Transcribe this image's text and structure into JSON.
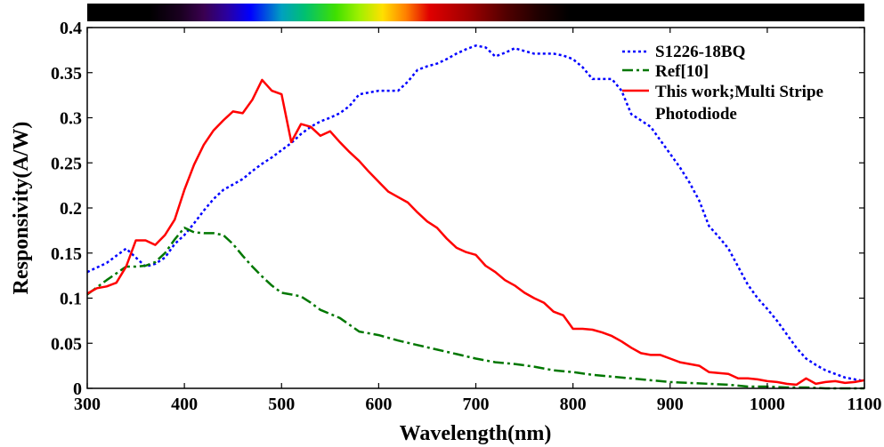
{
  "chart_data": {
    "type": "line",
    "xlabel": "Wavelength(nm)",
    "ylabel": "Responsivity(A/W)",
    "xlim": [
      300,
      1100
    ],
    "ylim": [
      0,
      0.4
    ],
    "x_ticks": [
      300,
      400,
      500,
      600,
      700,
      800,
      900,
      1000,
      1100
    ],
    "x_tick_labels": [
      "300",
      "400",
      "500",
      "600",
      "700",
      "800",
      "900",
      "1000",
      "1100"
    ],
    "y_ticks": [
      0,
      0.05,
      0.1,
      0.15,
      0.2,
      0.25,
      0.3,
      0.35,
      0.4
    ],
    "y_tick_labels": [
      "0",
      "0.05",
      "0.1",
      "0.15",
      "0.2",
      "0.25",
      "0.3",
      "0.35",
      "0.4"
    ],
    "grid": false,
    "legend_position": "top-right",
    "spectrum_bar": true,
    "series": [
      {
        "name": "S1226-18BQ",
        "color": "#0000ff",
        "style": "dotted",
        "x": [
          300,
          310,
          320,
          330,
          340,
          350,
          360,
          370,
          380,
          390,
          400,
          410,
          420,
          430,
          440,
          450,
          460,
          470,
          480,
          490,
          500,
          510,
          520,
          530,
          540,
          550,
          560,
          570,
          580,
          590,
          600,
          610,
          620,
          630,
          640,
          650,
          660,
          670,
          680,
          690,
          700,
          710,
          720,
          730,
          740,
          750,
          760,
          770,
          780,
          790,
          800,
          810,
          820,
          830,
          840,
          850,
          860,
          870,
          880,
          890,
          900,
          910,
          920,
          930,
          940,
          950,
          960,
          970,
          980,
          990,
          1000,
          1010,
          1020,
          1030,
          1040,
          1050,
          1060,
          1070,
          1080,
          1090,
          1100
        ],
        "values": [
          0.129,
          0.134,
          0.139,
          0.147,
          0.155,
          0.145,
          0.135,
          0.138,
          0.145,
          0.16,
          0.17,
          0.183,
          0.197,
          0.21,
          0.22,
          0.226,
          0.232,
          0.241,
          0.249,
          0.256,
          0.264,
          0.272,
          0.282,
          0.29,
          0.296,
          0.3,
          0.305,
          0.313,
          0.326,
          0.328,
          0.33,
          0.33,
          0.33,
          0.34,
          0.353,
          0.357,
          0.36,
          0.365,
          0.371,
          0.376,
          0.38,
          0.378,
          0.368,
          0.372,
          0.377,
          0.374,
          0.371,
          0.371,
          0.371,
          0.369,
          0.365,
          0.356,
          0.343,
          0.343,
          0.343,
          0.33,
          0.304,
          0.297,
          0.29,
          0.275,
          0.26,
          0.245,
          0.228,
          0.208,
          0.18,
          0.168,
          0.155,
          0.135,
          0.115,
          0.1,
          0.088,
          0.075,
          0.06,
          0.045,
          0.033,
          0.026,
          0.02,
          0.016,
          0.012,
          0.01,
          0.008
        ]
      },
      {
        "name": "Ref[10]",
        "color": "#007700",
        "style": "dashdot",
        "x": [
          300,
          320,
          340,
          350,
          360,
          370,
          380,
          390,
          400,
          410,
          420,
          430,
          440,
          450,
          460,
          470,
          480,
          490,
          500,
          510,
          520,
          530,
          540,
          560,
          580,
          600,
          620,
          640,
          660,
          680,
          700,
          720,
          740,
          760,
          780,
          800,
          820,
          840,
          860,
          880,
          900,
          920,
          940,
          960,
          980,
          1000,
          1020,
          1040,
          1060,
          1080,
          1100
        ],
        "values": [
          0.104,
          0.12,
          0.135,
          0.135,
          0.136,
          0.14,
          0.15,
          0.165,
          0.178,
          0.173,
          0.172,
          0.172,
          0.17,
          0.16,
          0.147,
          0.135,
          0.124,
          0.114,
          0.106,
          0.104,
          0.102,
          0.095,
          0.087,
          0.078,
          0.063,
          0.059,
          0.053,
          0.048,
          0.043,
          0.038,
          0.033,
          0.029,
          0.027,
          0.024,
          0.02,
          0.018,
          0.015,
          0.013,
          0.011,
          0.009,
          0.007,
          0.006,
          0.005,
          0.004,
          0.002,
          0.002,
          0.001,
          0.001,
          0.0,
          0.0,
          0.0
        ]
      },
      {
        "name": "This work;Multi Stripe Photodiode",
        "color": "#ff0000",
        "style": "solid",
        "x": [
          300,
          310,
          320,
          330,
          340,
          350,
          360,
          370,
          380,
          390,
          400,
          410,
          420,
          430,
          440,
          450,
          460,
          470,
          480,
          490,
          500,
          510,
          520,
          530,
          540,
          550,
          560,
          570,
          580,
          590,
          600,
          610,
          620,
          630,
          640,
          650,
          660,
          670,
          680,
          690,
          700,
          710,
          720,
          730,
          740,
          750,
          760,
          770,
          780,
          790,
          800,
          810,
          820,
          830,
          840,
          850,
          860,
          870,
          880,
          890,
          900,
          910,
          920,
          930,
          940,
          950,
          960,
          970,
          980,
          990,
          1000,
          1010,
          1020,
          1030,
          1040,
          1050,
          1060,
          1070,
          1080,
          1090,
          1100
        ],
        "values": [
          0.105,
          0.111,
          0.113,
          0.117,
          0.135,
          0.164,
          0.164,
          0.159,
          0.17,
          0.187,
          0.22,
          0.248,
          0.27,
          0.286,
          0.297,
          0.307,
          0.305,
          0.32,
          0.342,
          0.33,
          0.326,
          0.273,
          0.293,
          0.29,
          0.28,
          0.285,
          0.273,
          0.262,
          0.252,
          0.24,
          0.229,
          0.218,
          0.212,
          0.206,
          0.195,
          0.185,
          0.178,
          0.166,
          0.156,
          0.151,
          0.148,
          0.136,
          0.129,
          0.12,
          0.114,
          0.106,
          0.1,
          0.095,
          0.085,
          0.081,
          0.066,
          0.066,
          0.065,
          0.062,
          0.058,
          0.052,
          0.045,
          0.039,
          0.037,
          0.037,
          0.033,
          0.029,
          0.027,
          0.025,
          0.018,
          0.017,
          0.016,
          0.011,
          0.011,
          0.01,
          0.008,
          0.007,
          0.005,
          0.004,
          0.011,
          0.005,
          0.007,
          0.008,
          0.006,
          0.007,
          0.009
        ]
      }
    ]
  }
}
